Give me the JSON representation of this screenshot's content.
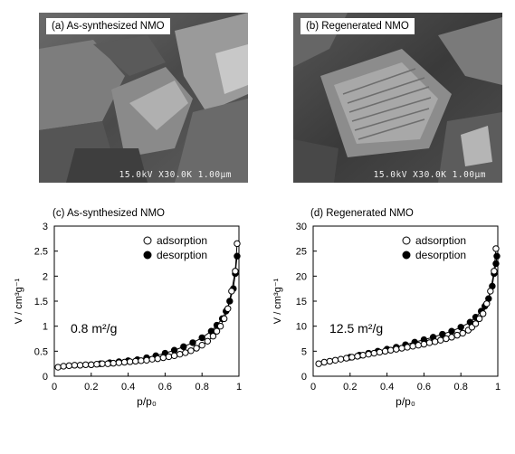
{
  "micrographs": [
    {
      "label": "(a) As-synthesized NMO",
      "scale_text": "15.0kV X30.0K 1.00μm"
    },
    {
      "label": "(b) Regenerated NMO",
      "scale_text": "15.0kV X30.0K 1.00μm"
    }
  ],
  "chart_data": [
    {
      "type": "scatter",
      "title": "(c) As-synthesized NMO",
      "xlabel": "p/p₀",
      "ylabel": "V / cm³g⁻¹",
      "xlim": [
        0,
        1
      ],
      "ylim": [
        0,
        3
      ],
      "xticks": [
        "0",
        "0.2",
        "0.4",
        "0.6",
        "0.8",
        "1"
      ],
      "yticks": [
        "0",
        "0.5",
        "1",
        "1.5",
        "2",
        "2.5",
        "3"
      ],
      "annotation": "0.8 m²/g",
      "legend": "top-right",
      "grid": false,
      "series": [
        {
          "name": "adsorption",
          "marker": "open-circle",
          "x": [
            0.02,
            0.05,
            0.08,
            0.11,
            0.14,
            0.17,
            0.2,
            0.23,
            0.26,
            0.29,
            0.32,
            0.35,
            0.38,
            0.41,
            0.44,
            0.47,
            0.5,
            0.53,
            0.56,
            0.59,
            0.62,
            0.65,
            0.68,
            0.71,
            0.74,
            0.77,
            0.8,
            0.83,
            0.86,
            0.88,
            0.9,
            0.92,
            0.94,
            0.96,
            0.98,
            0.99
          ],
          "y": [
            0.18,
            0.2,
            0.21,
            0.22,
            0.22,
            0.23,
            0.23,
            0.24,
            0.25,
            0.25,
            0.26,
            0.27,
            0.28,
            0.29,
            0.3,
            0.31,
            0.32,
            0.34,
            0.35,
            0.37,
            0.39,
            0.41,
            0.44,
            0.47,
            0.51,
            0.56,
            0.62,
            0.7,
            0.8,
            0.9,
            1.0,
            1.15,
            1.35,
            1.7,
            2.1,
            2.65
          ]
        },
        {
          "name": "desorption",
          "marker": "filled-circle",
          "x": [
            0.2,
            0.25,
            0.3,
            0.35,
            0.4,
            0.45,
            0.5,
            0.55,
            0.6,
            0.65,
            0.7,
            0.75,
            0.8,
            0.85,
            0.88,
            0.91,
            0.93,
            0.95,
            0.97,
            0.98,
            0.99
          ],
          "y": [
            0.23,
            0.25,
            0.27,
            0.29,
            0.31,
            0.33,
            0.37,
            0.41,
            0.46,
            0.52,
            0.59,
            0.67,
            0.77,
            0.9,
            1.02,
            1.15,
            1.3,
            1.5,
            1.75,
            2.05,
            2.4
          ]
        }
      ]
    },
    {
      "type": "scatter",
      "title": "(d) Regenerated NMO",
      "xlabel": "p/p₀",
      "ylabel": "V / cm³g⁻¹",
      "xlim": [
        0,
        1
      ],
      "ylim": [
        0,
        30
      ],
      "xticks": [
        "0",
        "0.2",
        "0.4",
        "0.6",
        "0.8",
        "1"
      ],
      "yticks": [
        "0",
        "5",
        "10",
        "15",
        "20",
        "25",
        "30"
      ],
      "annotation": "12.5 m²/g",
      "legend": "top-right",
      "grid": false,
      "series": [
        {
          "name": "adsorption",
          "marker": "open-circle",
          "x": [
            0.03,
            0.06,
            0.09,
            0.12,
            0.15,
            0.18,
            0.21,
            0.24,
            0.27,
            0.3,
            0.33,
            0.36,
            0.39,
            0.42,
            0.45,
            0.48,
            0.51,
            0.54,
            0.57,
            0.6,
            0.63,
            0.66,
            0.69,
            0.72,
            0.75,
            0.78,
            0.81,
            0.84,
            0.86,
            0.88,
            0.9,
            0.92,
            0.94,
            0.96,
            0.98,
            0.99
          ],
          "y": [
            2.5,
            2.8,
            3.0,
            3.2,
            3.4,
            3.6,
            3.8,
            4.0,
            4.2,
            4.4,
            4.6,
            4.8,
            5.0,
            5.2,
            5.4,
            5.6,
            5.8,
            6.0,
            6.2,
            6.4,
            6.7,
            6.9,
            7.2,
            7.5,
            7.8,
            8.2,
            8.6,
            9.2,
            9.8,
            10.5,
            11.5,
            12.5,
            14.5,
            17.0,
            21.0,
            25.5
          ]
        },
        {
          "name": "desorption",
          "marker": "filled-circle",
          "x": [
            0.2,
            0.25,
            0.3,
            0.35,
            0.4,
            0.45,
            0.5,
            0.55,
            0.6,
            0.65,
            0.7,
            0.75,
            0.8,
            0.85,
            0.88,
            0.91,
            0.93,
            0.95,
            0.97,
            0.98,
            0.99,
            0.995
          ],
          "y": [
            3.8,
            4.2,
            4.6,
            5.0,
            5.4,
            5.8,
            6.3,
            6.8,
            7.3,
            7.8,
            8.4,
            9.0,
            9.8,
            10.8,
            11.8,
            13.0,
            14.0,
            15.5,
            18.0,
            20.5,
            22.5,
            24.0
          ]
        }
      ]
    }
  ]
}
